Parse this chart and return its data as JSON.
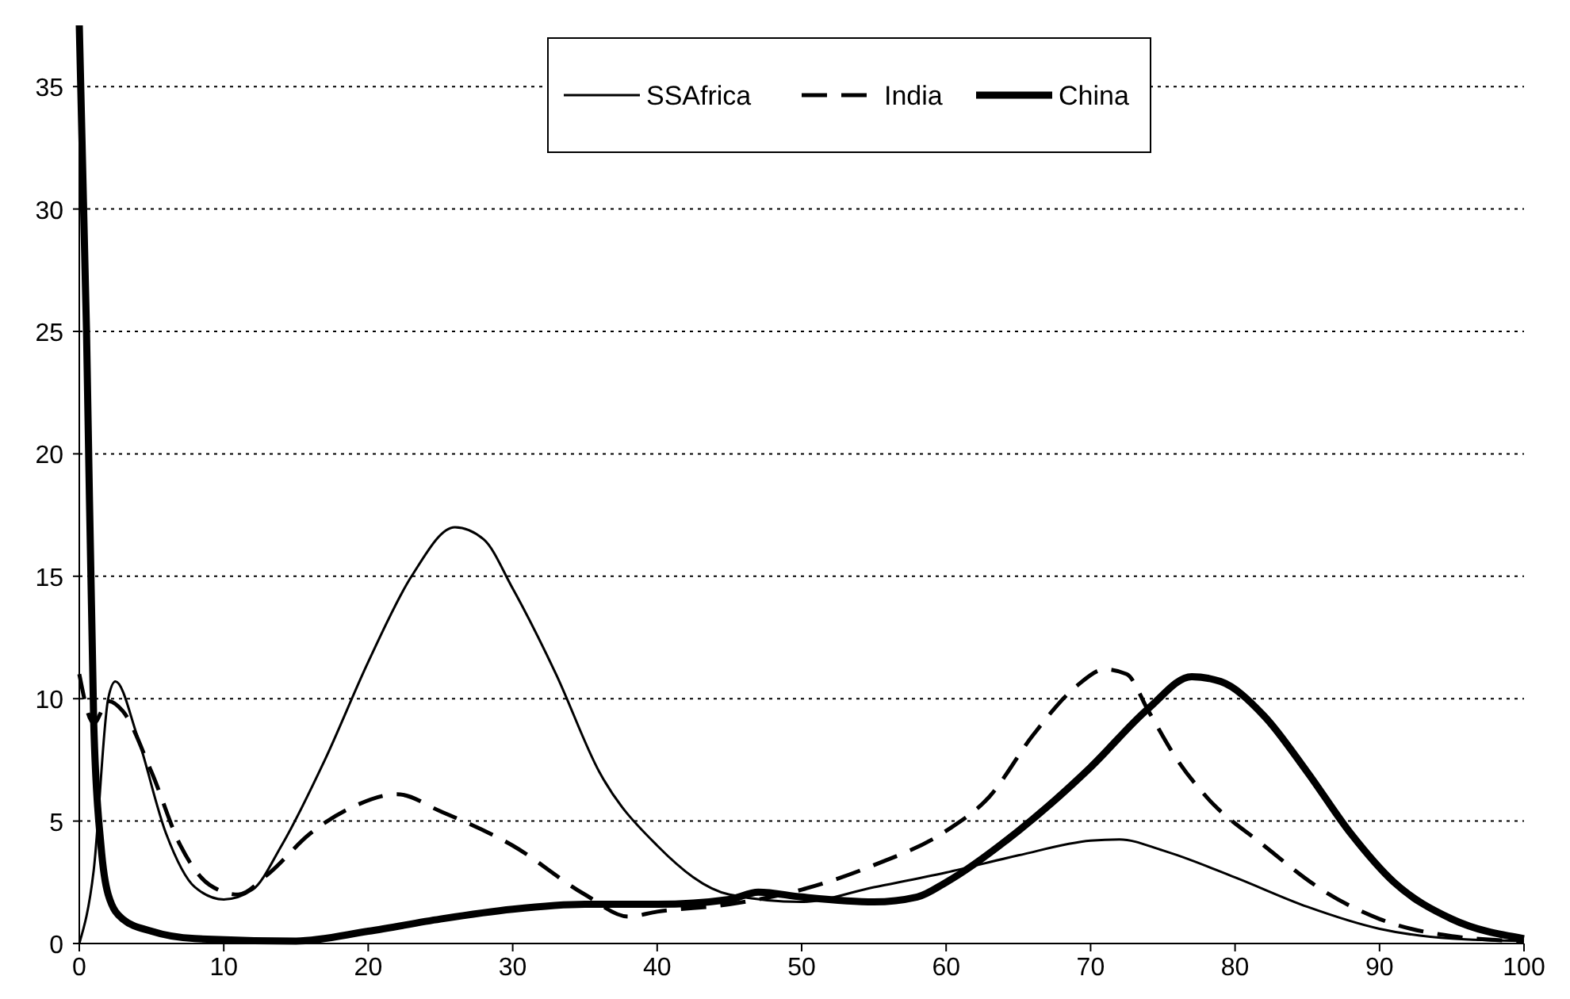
{
  "chart_data": {
    "type": "line",
    "xlim": [
      0,
      100
    ],
    "xticks": [
      0,
      10,
      20,
      30,
      40,
      50,
      60,
      70,
      80,
      90,
      100
    ],
    "ylim": [
      0,
      37.5
    ],
    "yticks": [
      0,
      5,
      10,
      15,
      20,
      25,
      30,
      35
    ],
    "grid": "y",
    "legend": "top",
    "series": [
      {
        "name": "SSAfrica",
        "color": "#000000",
        "line_style": "solid",
        "x": [
          0,
          1,
          2,
          2.5,
          4,
          6,
          8,
          10,
          12,
          14,
          17,
          20,
          23,
          26,
          28,
          30,
          33,
          36,
          40,
          45,
          50,
          55,
          60,
          65,
          70,
          72,
          75,
          80,
          85,
          90,
          95,
          100
        ],
        "values": [
          0,
          3,
          10,
          10.7,
          8.5,
          4.5,
          2.3,
          1.8,
          2.2,
          4,
          7.5,
          11.5,
          15,
          17,
          16.5,
          14.5,
          11,
          7,
          4,
          2,
          1.7,
          2.3,
          2.9,
          3.6,
          4.2,
          4.25,
          3.8,
          2.7,
          1.5,
          0.6,
          0.2,
          0.1
        ]
      },
      {
        "name": "India",
        "color": "#000000",
        "line_style": "dashed",
        "x": [
          0,
          1,
          2,
          3,
          5,
          7,
          9,
          11,
          13,
          16,
          19,
          22,
          25,
          30,
          35,
          38,
          40,
          45,
          50,
          55,
          60,
          63,
          66,
          69,
          71,
          72.5,
          74,
          76,
          78,
          82,
          86,
          90,
          95,
          100
        ],
        "values": [
          11,
          9,
          9.9,
          9.5,
          7,
          4,
          2.4,
          2,
          2.8,
          4.5,
          5.6,
          6.1,
          5.4,
          4,
          2,
          1.1,
          1.3,
          1.6,
          2.2,
          3.2,
          4.6,
          6,
          8.5,
          10.5,
          11.2,
          11,
          9.5,
          7.5,
          6,
          4,
          2.2,
          1,
          0.3,
          0.1
        ]
      },
      {
        "name": "China",
        "color": "#000000",
        "line_style": "solid",
        "x": [
          0,
          0.5,
          1,
          1.5,
          2,
          3,
          5,
          8,
          15,
          20,
          25,
          30,
          35,
          40,
          45,
          47,
          50,
          55,
          58,
          60,
          65,
          70,
          74,
          77,
          79,
          82,
          85,
          88,
          91,
          95,
          100
        ],
        "values": [
          37.5,
          25,
          9,
          4,
          2,
          1,
          0.5,
          0.2,
          0.1,
          0.5,
          1,
          1.4,
          1.6,
          1.6,
          1.8,
          2.1,
          1.9,
          1.7,
          1.9,
          2.5,
          4.6,
          7.2,
          9.6,
          10.9,
          10.7,
          9.3,
          7,
          4.5,
          2.5,
          1,
          0.2
        ]
      }
    ]
  }
}
